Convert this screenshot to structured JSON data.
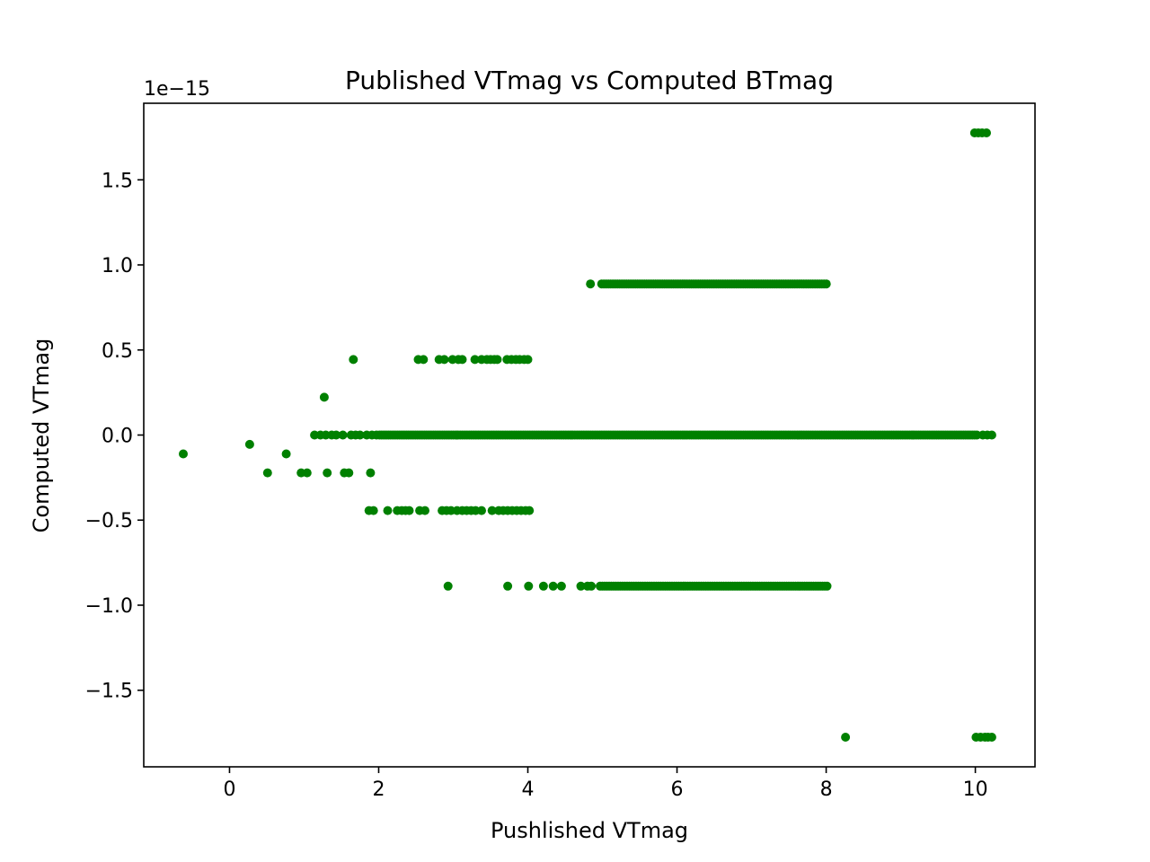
{
  "chart_data": {
    "type": "scatter",
    "title": "Published VTmag vs Computed BTmag",
    "xlabel": "Pushlished VTmag",
    "ylabel": "Computed VTmag",
    "y_offset_label": "1e−15",
    "xlim": [
      -1.15,
      10.8
    ],
    "ylim": [
      -1.95,
      1.95
    ],
    "x_ticks": [
      0,
      2,
      4,
      6,
      8,
      10
    ],
    "x_tick_labels": [
      "0",
      "2",
      "4",
      "6",
      "8",
      "10"
    ],
    "y_ticks": [
      -1.5,
      -1.0,
      -0.5,
      0.0,
      0.5,
      1.0,
      1.5
    ],
    "y_tick_labels": [
      "−1.5",
      "−1.0",
      "−0.5",
      "0.0",
      "0.5",
      "1.0",
      "1.5"
    ],
    "marker_color": "#008000",
    "grid": false,
    "series": [
      {
        "points": [
          [
            -0.62,
            -0.111
          ],
          [
            0.27,
            -0.055
          ],
          [
            0.51,
            -0.222
          ],
          [
            0.76,
            -0.111
          ],
          [
            0.96,
            -0.222
          ],
          [
            1.04,
            -0.222
          ],
          [
            1.31,
            -0.222
          ],
          [
            1.54,
            -0.222
          ],
          [
            1.6,
            -0.222
          ],
          [
            1.89,
            -0.222
          ],
          [
            1.27,
            0.222
          ],
          [
            1.66,
            0.444
          ],
          [
            2.53,
            0.444
          ],
          [
            2.6,
            0.444
          ],
          [
            2.81,
            0.444
          ],
          [
            2.88,
            0.444
          ],
          [
            2.99,
            0.444
          ],
          [
            3.07,
            0.444
          ],
          [
            3.12,
            0.444
          ],
          [
            3.29,
            0.444
          ],
          [
            3.38,
            0.444
          ],
          [
            3.45,
            0.444
          ],
          [
            3.5,
            0.444
          ],
          [
            3.55,
            0.444
          ],
          [
            3.59,
            0.444
          ],
          [
            3.72,
            0.444
          ],
          [
            3.78,
            0.444
          ],
          [
            3.84,
            0.444
          ],
          [
            3.89,
            0.444
          ],
          [
            3.95,
            0.444
          ],
          [
            4.0,
            0.444
          ],
          [
            1.87,
            -0.444
          ],
          [
            1.93,
            -0.444
          ],
          [
            2.12,
            -0.444
          ],
          [
            2.25,
            -0.444
          ],
          [
            2.31,
            -0.444
          ],
          [
            2.36,
            -0.444
          ],
          [
            2.41,
            -0.444
          ],
          [
            2.55,
            -0.444
          ],
          [
            2.62,
            -0.444
          ],
          [
            2.85,
            -0.444
          ],
          [
            2.91,
            -0.444
          ],
          [
            2.97,
            -0.444
          ],
          [
            3.05,
            -0.444
          ],
          [
            3.12,
            -0.444
          ],
          [
            3.18,
            -0.444
          ],
          [
            3.24,
            -0.444
          ],
          [
            3.3,
            -0.444
          ],
          [
            3.38,
            -0.444
          ],
          [
            3.52,
            -0.444
          ],
          [
            3.61,
            -0.444
          ],
          [
            3.67,
            -0.444
          ],
          [
            3.73,
            -0.444
          ],
          [
            3.79,
            -0.444
          ],
          [
            3.85,
            -0.444
          ],
          [
            3.91,
            -0.444
          ],
          [
            3.97,
            -0.444
          ],
          [
            4.02,
            -0.444
          ],
          [
            4.84,
            0.888
          ],
          [
            2.93,
            -0.888
          ],
          [
            3.73,
            -0.888
          ],
          [
            4.01,
            -0.888
          ],
          [
            4.21,
            -0.888
          ],
          [
            4.34,
            -0.888
          ],
          [
            4.45,
            -0.888
          ],
          [
            4.71,
            -0.888
          ],
          [
            4.8,
            -0.888
          ],
          [
            4.85,
            -0.888
          ],
          [
            8.26,
            -1.776
          ],
          [
            10.01,
            -1.776
          ],
          [
            10.07,
            -1.776
          ],
          [
            10.13,
            -1.776
          ],
          [
            10.17,
            -1.776
          ],
          [
            10.22,
            -1.776
          ],
          [
            9.99,
            1.776
          ],
          [
            10.04,
            1.776
          ],
          [
            10.09,
            1.776
          ],
          [
            10.15,
            1.776
          ],
          [
            1.14,
            0.0
          ],
          [
            1.22,
            0.0
          ],
          [
            1.29,
            0.0
          ],
          [
            1.37,
            0.0
          ],
          [
            1.43,
            0.0
          ],
          [
            1.52,
            0.0
          ],
          [
            1.63,
            0.0
          ],
          [
            1.69,
            0.0
          ],
          [
            1.75,
            0.0
          ],
          [
            1.84,
            0.0
          ],
          [
            1.91,
            0.0
          ],
          [
            1.97,
            0.0
          ],
          [
            10.1,
            0.0
          ],
          [
            10.16,
            0.0
          ],
          [
            10.22,
            0.0
          ]
        ],
        "runs": [
          {
            "y": 0.0,
            "x_from": 2.01,
            "x_to": 10.03
          },
          {
            "y": 0.888,
            "x_from": 4.99,
            "x_to": 8.02
          },
          {
            "y": -0.888,
            "x_from": 4.97,
            "x_to": 8.02
          }
        ]
      }
    ]
  }
}
